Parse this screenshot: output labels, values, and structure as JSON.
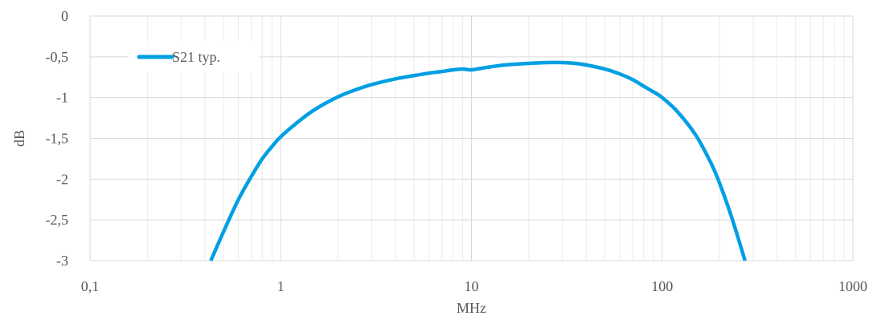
{
  "chart_data": {
    "type": "line",
    "xscale": "log",
    "xlim": [
      0.1,
      1000
    ],
    "ylim": [
      -3,
      0
    ],
    "xlabel": "MHz",
    "ylabel": "dB",
    "x_ticks": [
      "0,1",
      "1",
      "10",
      "100",
      "1000"
    ],
    "y_ticks": [
      "0",
      "-0,5",
      "-1",
      "-1,5",
      "-2",
      "-2,5",
      "-3"
    ],
    "grid": true,
    "legend_position": "top-left",
    "series": [
      {
        "name": "S21 typ.",
        "color": "#009fe3",
        "x": [
          0.43,
          0.5,
          0.6,
          0.7,
          0.8,
          0.9,
          1,
          1.2,
          1.5,
          2,
          2.5,
          3,
          4,
          5,
          6,
          7,
          8,
          9,
          10,
          12,
          15,
          20,
          25,
          30,
          35,
          40,
          50,
          60,
          70,
          80,
          90,
          100,
          120,
          150,
          180,
          200,
          230,
          260,
          272
        ],
        "y": [
          -3.0,
          -2.65,
          -2.25,
          -1.97,
          -1.75,
          -1.6,
          -1.48,
          -1.32,
          -1.15,
          -0.99,
          -0.9,
          -0.84,
          -0.77,
          -0.73,
          -0.7,
          -0.68,
          -0.66,
          -0.65,
          -0.66,
          -0.63,
          -0.6,
          -0.58,
          -0.57,
          -0.57,
          -0.58,
          -0.6,
          -0.65,
          -0.71,
          -0.78,
          -0.86,
          -0.93,
          -1.0,
          -1.17,
          -1.46,
          -1.8,
          -2.05,
          -2.45,
          -2.85,
          -3.0
        ]
      }
    ]
  }
}
